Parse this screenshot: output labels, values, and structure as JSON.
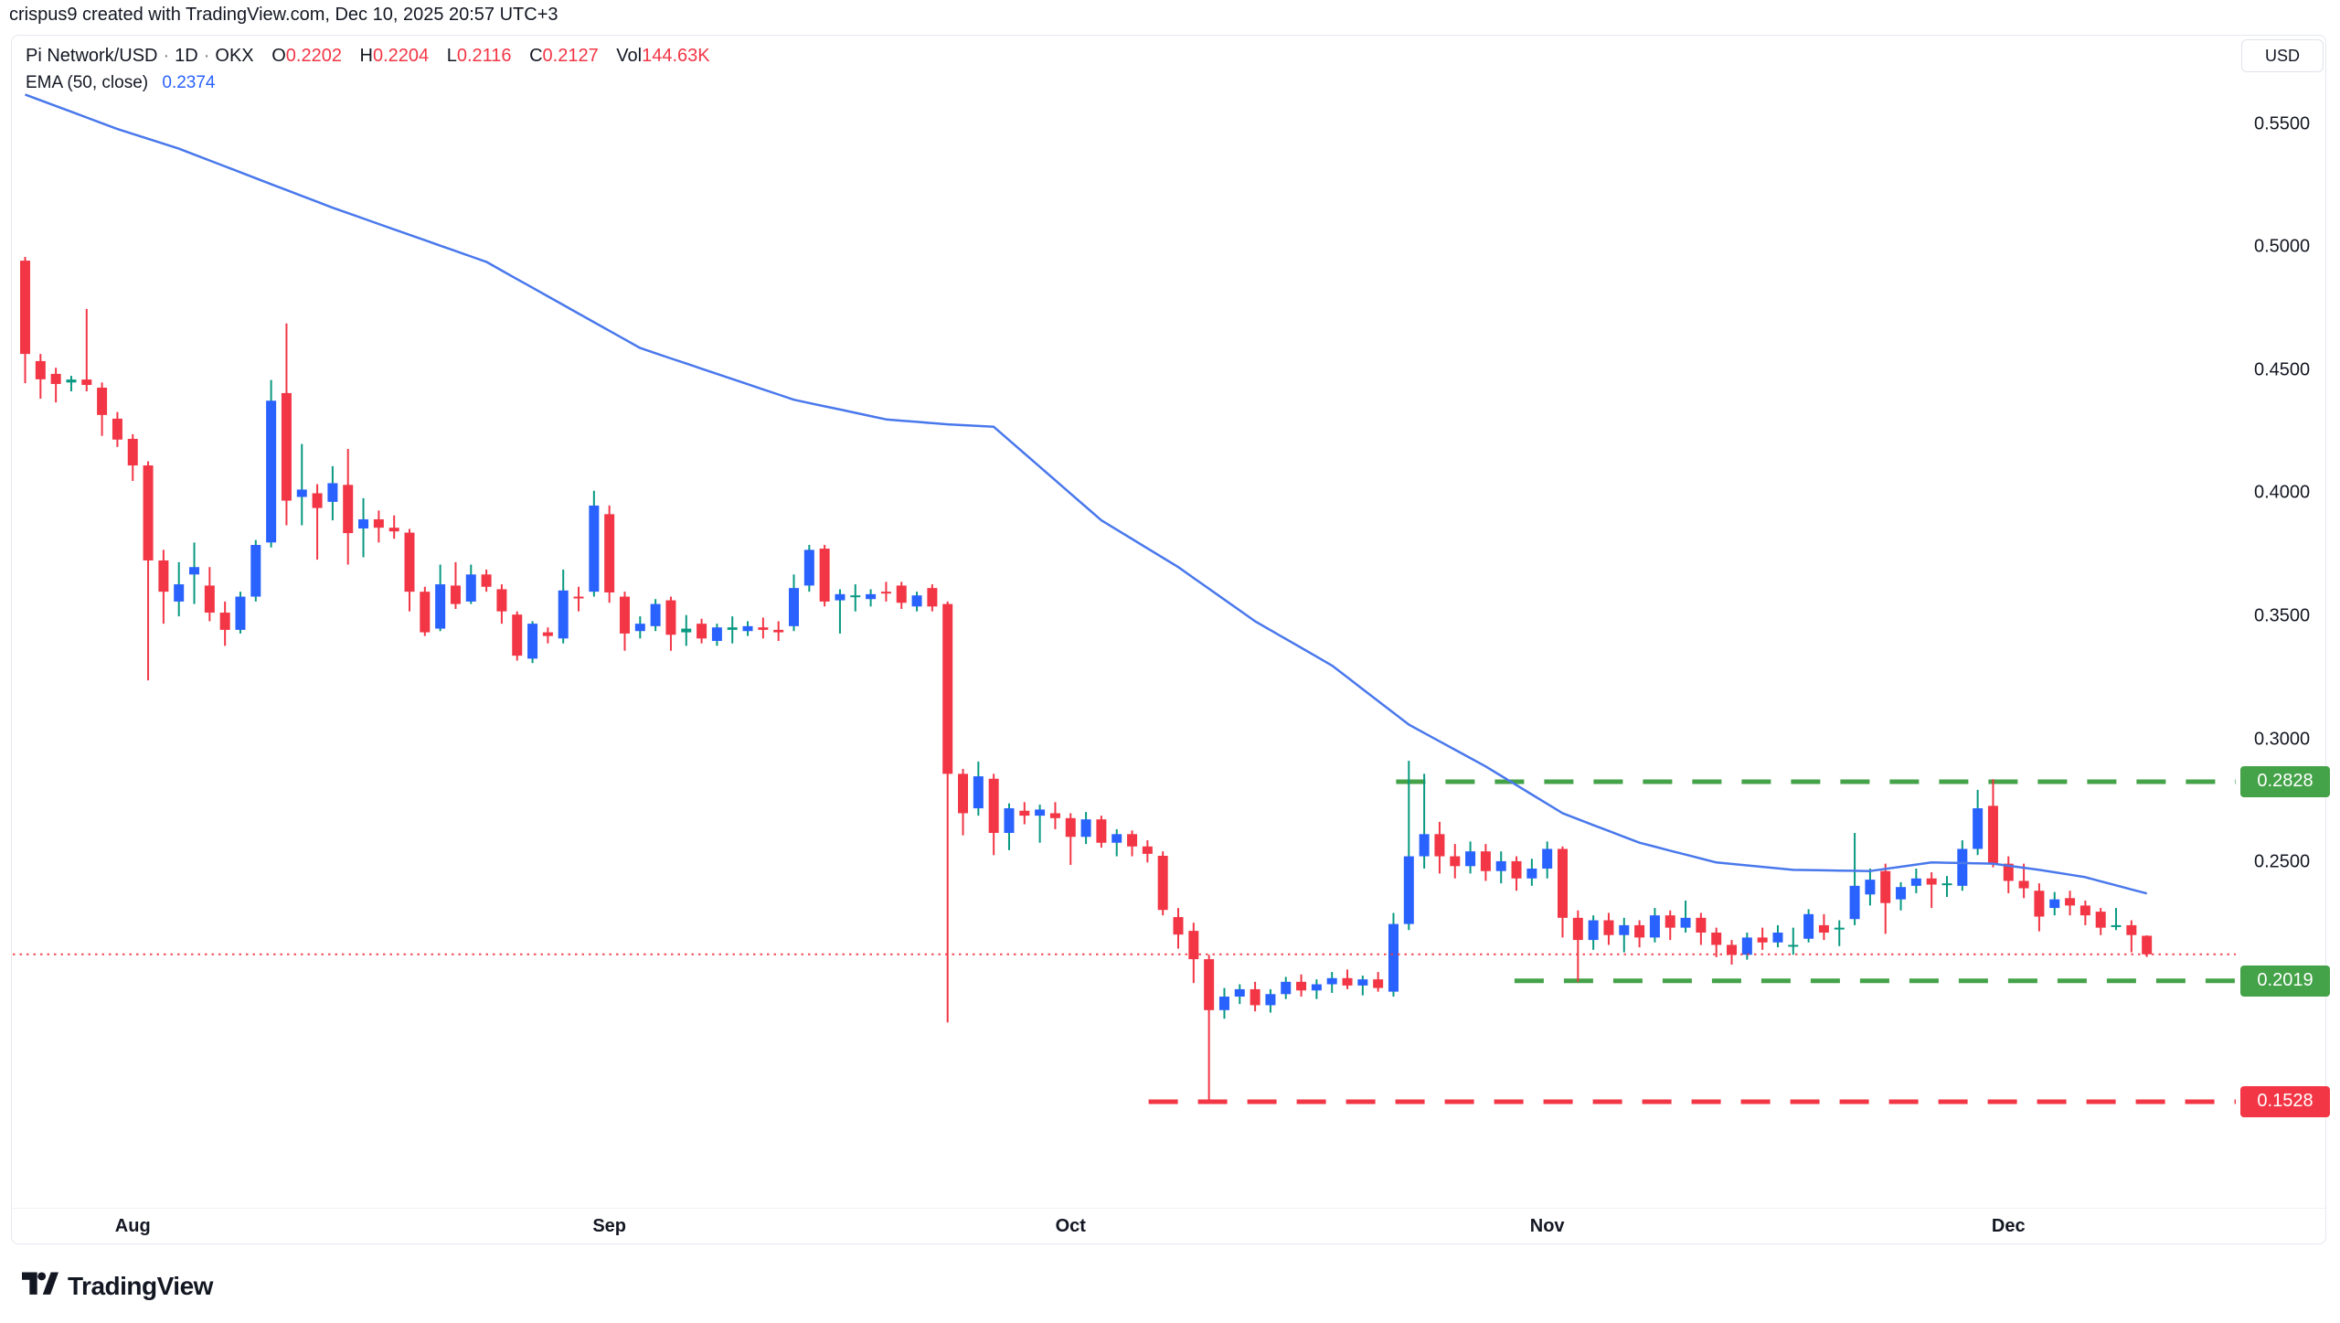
{
  "watermark": "crispus9 created with TradingView.com, Dec 10, 2025 20:57 UTC+3",
  "legend": {
    "title": "Pi Network/USD",
    "separator": "·",
    "interval": "1D",
    "exchange": "OKX",
    "ohlcv": [
      {
        "label": "O",
        "value": "0.2202"
      },
      {
        "label": "H",
        "value": "0.2204"
      },
      {
        "label": "L",
        "value": "0.2116"
      },
      {
        "label": "C",
        "value": "0.2127"
      },
      {
        "label": "Vol",
        "value": "144.63K"
      }
    ],
    "indicator": {
      "label": "EMA (50, close)",
      "value": "0.2374"
    }
  },
  "y_axis": {
    "currency": "USD",
    "tick_labels": [
      "0.5500",
      "0.5000",
      "0.4500",
      "0.4000",
      "0.3500",
      "0.3000",
      "0.2500"
    ],
    "tick_values": [
      0.55,
      0.5,
      0.45,
      0.4,
      0.35,
      0.3,
      0.25
    ]
  },
  "x_axis": {
    "month_labels": [
      {
        "label": "Aug",
        "candle_index": 7
      },
      {
        "label": "Sep",
        "candle_index": 38
      },
      {
        "label": "Oct",
        "candle_index": 68
      },
      {
        "label": "Nov",
        "candle_index": 99
      },
      {
        "label": "Dec",
        "candle_index": 129
      }
    ]
  },
  "badges": [
    {
      "label": "0.2828",
      "value": 0.2828,
      "color": "#44A248"
    },
    {
      "label": "0.2019",
      "value": 0.2019,
      "color": "#44A248"
    },
    {
      "label": "0.1528",
      "value": 0.1528,
      "color": "#F23645"
    }
  ],
  "logo_text": "TradingView",
  "colors": {
    "up_body": "#2962FF",
    "up_wick": "#089981",
    "up_small_body": "#089981",
    "down": "#F23645",
    "ema": "#4978EC",
    "support_resistance": "#44A248",
    "crash_level": "#F23645",
    "last_price": "#F23645",
    "text": "#131722",
    "frame": "#E6E8F0"
  },
  "chart_data": {
    "type": "candlestick",
    "title": "Pi Network/USD · 1D · OKX",
    "interval": "1D",
    "legend_last_bar": {
      "open": 0.2202,
      "high": 0.2204,
      "low": 0.2116,
      "close": 0.2127,
      "volume": "144.63K"
    },
    "ylim": [
      0.13,
      0.585
    ],
    "grid": false,
    "ohlc_format": [
      "date",
      "open",
      "high",
      "low",
      "close"
    ],
    "candles": [
      [
        "2025-07-25",
        0.4945,
        0.496,
        0.4447,
        0.4566
      ],
      [
        "2025-07-26",
        0.4537,
        0.4566,
        0.4384,
        0.4463
      ],
      [
        "2025-07-27",
        0.4485,
        0.451,
        0.4369,
        0.4444
      ],
      [
        "2025-07-28",
        0.445,
        0.4477,
        0.4414,
        0.4462
      ],
      [
        "2025-07-29",
        0.4462,
        0.4749,
        0.4414,
        0.444
      ],
      [
        "2025-07-30",
        0.4429,
        0.445,
        0.4233,
        0.4318
      ],
      [
        "2025-07-31",
        0.4303,
        0.433,
        0.4188,
        0.4218
      ],
      [
        "2025-08-01",
        0.4221,
        0.424,
        0.405,
        0.4113
      ],
      [
        "2025-08-02",
        0.4113,
        0.413,
        0.324,
        0.3727
      ],
      [
        "2025-08-03",
        0.3727,
        0.377,
        0.347,
        0.36
      ],
      [
        "2025-08-04",
        0.356,
        0.372,
        0.35,
        0.363
      ],
      [
        "2025-08-05",
        0.367,
        0.38,
        0.355,
        0.37
      ],
      [
        "2025-08-06",
        0.3625,
        0.37,
        0.348,
        0.3515
      ],
      [
        "2025-08-07",
        0.3515,
        0.356,
        0.338,
        0.3445
      ],
      [
        "2025-08-08",
        0.3445,
        0.36,
        0.343,
        0.358
      ],
      [
        "2025-08-09",
        0.358,
        0.381,
        0.356,
        0.379
      ],
      [
        "2025-08-10",
        0.38,
        0.446,
        0.378,
        0.4376
      ],
      [
        "2025-08-11",
        0.4407,
        0.469,
        0.387,
        0.397
      ],
      [
        "2025-08-12",
        0.3985,
        0.42,
        0.387,
        0.4015
      ],
      [
        "2025-08-13",
        0.4,
        0.4037,
        0.373,
        0.394
      ],
      [
        "2025-08-14",
        0.3965,
        0.411,
        0.389,
        0.4041
      ],
      [
        "2025-08-15",
        0.4034,
        0.418,
        0.371,
        0.3838
      ],
      [
        "2025-08-16",
        0.3857,
        0.398,
        0.374,
        0.3894
      ],
      [
        "2025-08-17",
        0.3894,
        0.393,
        0.38,
        0.386
      ],
      [
        "2025-08-18",
        0.386,
        0.391,
        0.3815,
        0.3845
      ],
      [
        "2025-08-19",
        0.384,
        0.3855,
        0.352,
        0.36
      ],
      [
        "2025-08-20",
        0.36,
        0.362,
        0.342,
        0.3435
      ],
      [
        "2025-08-21",
        0.345,
        0.371,
        0.344,
        0.363
      ],
      [
        "2025-08-22",
        0.3625,
        0.372,
        0.353,
        0.355
      ],
      [
        "2025-08-23",
        0.356,
        0.371,
        0.355,
        0.367
      ],
      [
        "2025-08-24",
        0.367,
        0.369,
        0.36,
        0.362
      ],
      [
        "2025-08-25",
        0.361,
        0.363,
        0.347,
        0.352
      ],
      [
        "2025-08-26",
        0.3507,
        0.352,
        0.332,
        0.334
      ],
      [
        "2025-08-27",
        0.3328,
        0.348,
        0.331,
        0.347
      ],
      [
        "2025-08-28",
        0.3435,
        0.3455,
        0.339,
        0.342
      ],
      [
        "2025-08-29",
        0.341,
        0.369,
        0.339,
        0.3605
      ],
      [
        "2025-08-30",
        0.358,
        0.362,
        0.352,
        0.3575
      ],
      [
        "2025-08-31",
        0.36,
        0.401,
        0.358,
        0.395
      ],
      [
        "2025-09-01",
        0.3915,
        0.395,
        0.3555,
        0.3597
      ],
      [
        "2025-09-02",
        0.358,
        0.36,
        0.336,
        0.343
      ],
      [
        "2025-09-03",
        0.344,
        0.35,
        0.341,
        0.347
      ],
      [
        "2025-09-04",
        0.346,
        0.357,
        0.344,
        0.355
      ],
      [
        "2025-09-05",
        0.3565,
        0.358,
        0.336,
        0.3425
      ],
      [
        "2025-09-06",
        0.3435,
        0.3505,
        0.338,
        0.345
      ],
      [
        "2025-09-07",
        0.347,
        0.349,
        0.339,
        0.341
      ],
      [
        "2025-09-08",
        0.34,
        0.347,
        0.338,
        0.3455
      ],
      [
        "2025-09-09",
        0.3445,
        0.35,
        0.339,
        0.3455
      ],
      [
        "2025-09-10",
        0.344,
        0.348,
        0.342,
        0.346
      ],
      [
        "2025-09-11",
        0.3455,
        0.3495,
        0.341,
        0.3445
      ],
      [
        "2025-09-12",
        0.3445,
        0.348,
        0.34,
        0.3435
      ],
      [
        "2025-09-13",
        0.346,
        0.367,
        0.344,
        0.3615
      ],
      [
        "2025-09-14",
        0.3625,
        0.379,
        0.36,
        0.377
      ],
      [
        "2025-09-15",
        0.3775,
        0.379,
        0.354,
        0.356
      ],
      [
        "2025-09-16",
        0.3565,
        0.361,
        0.343,
        0.359
      ],
      [
        "2025-09-17",
        0.358,
        0.363,
        0.352,
        0.3585
      ],
      [
        "2025-09-18",
        0.357,
        0.361,
        0.354,
        0.359
      ],
      [
        "2025-09-19",
        0.36,
        0.364,
        0.356,
        0.3595
      ],
      [
        "2025-09-20",
        0.3625,
        0.364,
        0.353,
        0.3555
      ],
      [
        "2025-09-21",
        0.354,
        0.36,
        0.352,
        0.3585
      ],
      [
        "2025-09-22",
        0.3615,
        0.363,
        0.352,
        0.354
      ],
      [
        "2025-09-23",
        0.355,
        0.356,
        0.185,
        0.286
      ],
      [
        "2025-09-24",
        0.286,
        0.288,
        0.261,
        0.27
      ],
      [
        "2025-09-25",
        0.272,
        0.291,
        0.269,
        0.285
      ],
      [
        "2025-09-26",
        0.284,
        0.286,
        0.253,
        0.262
      ],
      [
        "2025-09-27",
        0.262,
        0.274,
        0.255,
        0.272
      ],
      [
        "2025-09-28",
        0.271,
        0.2745,
        0.2655,
        0.269
      ],
      [
        "2025-09-29",
        0.269,
        0.2735,
        0.258,
        0.2715
      ],
      [
        "2025-09-30",
        0.27,
        0.2745,
        0.2635,
        0.268
      ],
      [
        "2025-10-01",
        0.268,
        0.27,
        0.249,
        0.2604
      ],
      [
        "2025-10-02",
        0.2604,
        0.2705,
        0.2575,
        0.2675
      ],
      [
        "2025-10-03",
        0.2675,
        0.269,
        0.256,
        0.258
      ],
      [
        "2025-10-04",
        0.258,
        0.2635,
        0.2525,
        0.2615
      ],
      [
        "2025-10-05",
        0.2615,
        0.263,
        0.2525,
        0.2565
      ],
      [
        "2025-10-06",
        0.2565,
        0.259,
        0.25,
        0.2535
      ],
      [
        "2025-10-07",
        0.2527,
        0.2545,
        0.2285,
        0.2307
      ],
      [
        "2025-10-08",
        0.2278,
        0.2315,
        0.215,
        0.2207
      ],
      [
        "2025-10-09",
        0.2222,
        0.2255,
        0.201,
        0.2107
      ],
      [
        "2025-10-10",
        0.2107,
        0.2125,
        0.1528,
        0.19
      ],
      [
        "2025-10-11",
        0.19,
        0.199,
        0.1865,
        0.1955
      ],
      [
        "2025-10-12",
        0.1955,
        0.2005,
        0.1925,
        0.1985
      ],
      [
        "2025-10-13",
        0.1985,
        0.2015,
        0.1895,
        0.192
      ],
      [
        "2025-10-14",
        0.192,
        0.1985,
        0.189,
        0.1965
      ],
      [
        "2025-10-15",
        0.1965,
        0.2035,
        0.1945,
        0.2015
      ],
      [
        "2025-10-16",
        0.2015,
        0.2045,
        0.1955,
        0.198
      ],
      [
        "2025-10-17",
        0.198,
        0.2025,
        0.1945,
        0.2005
      ],
      [
        "2025-10-18",
        0.2005,
        0.2055,
        0.197,
        0.203
      ],
      [
        "2025-10-19",
        0.203,
        0.2065,
        0.1985,
        0.2
      ],
      [
        "2025-10-20",
        0.2,
        0.204,
        0.196,
        0.2025
      ],
      [
        "2025-10-21",
        0.2025,
        0.2055,
        0.1975,
        0.199
      ],
      [
        "2025-10-22",
        0.1975,
        0.2295,
        0.1955,
        0.225
      ],
      [
        "2025-10-23",
        0.225,
        0.2913,
        0.2225,
        0.2525
      ],
      [
        "2025-10-24",
        0.2525,
        0.286,
        0.2475,
        0.2615
      ],
      [
        "2025-10-25",
        0.2615,
        0.2665,
        0.2455,
        0.2525
      ],
      [
        "2025-10-26",
        0.2525,
        0.2575,
        0.2435,
        0.2485
      ],
      [
        "2025-10-27",
        0.2485,
        0.2585,
        0.2455,
        0.2545
      ],
      [
        "2025-10-28",
        0.2545,
        0.2575,
        0.2425,
        0.2465
      ],
      [
        "2025-10-29",
        0.2465,
        0.2545,
        0.2415,
        0.2505
      ],
      [
        "2025-10-30",
        0.2505,
        0.2525,
        0.2385,
        0.2435
      ],
      [
        "2025-10-31",
        0.2435,
        0.2515,
        0.2405,
        0.2475
      ],
      [
        "2025-11-01",
        0.2475,
        0.2585,
        0.2435,
        0.2555
      ],
      [
        "2025-11-02",
        0.2555,
        0.2565,
        0.2195,
        0.2275
      ],
      [
        "2025-11-03",
        0.2275,
        0.2305,
        0.2015,
        0.2185
      ],
      [
        "2025-11-04",
        0.2185,
        0.2285,
        0.2145,
        0.2265
      ],
      [
        "2025-11-05",
        0.2265,
        0.2295,
        0.2165,
        0.2205
      ],
      [
        "2025-11-06",
        0.2205,
        0.2275,
        0.2135,
        0.2245
      ],
      [
        "2025-11-07",
        0.2245,
        0.2265,
        0.2155,
        0.2195
      ],
      [
        "2025-11-08",
        0.2195,
        0.2315,
        0.2175,
        0.2285
      ],
      [
        "2025-11-09",
        0.2285,
        0.2305,
        0.2185,
        0.2235
      ],
      [
        "2025-11-10",
        0.2235,
        0.2345,
        0.2215,
        0.2275
      ],
      [
        "2025-11-11",
        0.2275,
        0.2295,
        0.2165,
        0.2215
      ],
      [
        "2025-11-12",
        0.2215,
        0.2235,
        0.2115,
        0.2165
      ],
      [
        "2025-11-13",
        0.2165,
        0.2185,
        0.2085,
        0.2125
      ],
      [
        "2025-11-14",
        0.2125,
        0.2215,
        0.2105,
        0.2195
      ],
      [
        "2025-11-15",
        0.2195,
        0.2235,
        0.2145,
        0.2175
      ],
      [
        "2025-11-16",
        0.2175,
        0.2245,
        0.2155,
        0.2215
      ],
      [
        "2025-11-17",
        0.2165,
        0.2235,
        0.2125,
        0.2165
      ],
      [
        "2025-11-18",
        0.219,
        0.231,
        0.2175,
        0.229
      ],
      [
        "2025-11-19",
        0.2245,
        0.229,
        0.2185,
        0.2215
      ],
      [
        "2025-11-20",
        0.2235,
        0.2265,
        0.216,
        0.2235
      ],
      [
        "2025-11-21",
        0.227,
        0.262,
        0.2245,
        0.2405
      ],
      [
        "2025-11-22",
        0.237,
        0.2475,
        0.2325,
        0.243
      ],
      [
        "2025-11-23",
        0.2465,
        0.2495,
        0.221,
        0.2335
      ],
      [
        "2025-11-24",
        0.235,
        0.242,
        0.2305,
        0.24
      ],
      [
        "2025-11-25",
        0.2405,
        0.2475,
        0.2375,
        0.2435
      ],
      [
        "2025-11-26",
        0.2435,
        0.246,
        0.2315,
        0.241
      ],
      [
        "2025-11-27",
        0.2415,
        0.2445,
        0.236,
        0.2415
      ],
      [
        "2025-11-28",
        0.2405,
        0.259,
        0.2385,
        0.2555
      ],
      [
        "2025-11-29",
        0.2555,
        0.2795,
        0.253,
        0.272
      ],
      [
        "2025-11-30",
        0.273,
        0.2838,
        0.248,
        0.2495
      ],
      [
        "2025-12-01",
        0.2495,
        0.2525,
        0.2375,
        0.2425
      ],
      [
        "2025-12-02",
        0.2425,
        0.2495,
        0.2355,
        0.2395
      ],
      [
        "2025-12-03",
        0.2385,
        0.2415,
        0.222,
        0.228
      ],
      [
        "2025-12-04",
        0.2315,
        0.238,
        0.2285,
        0.235
      ],
      [
        "2025-12-05",
        0.2355,
        0.2385,
        0.2285,
        0.2325
      ],
      [
        "2025-12-06",
        0.2325,
        0.2345,
        0.2245,
        0.2285
      ],
      [
        "2025-12-07",
        0.23,
        0.2315,
        0.2205,
        0.2235
      ],
      [
        "2025-12-08",
        0.2245,
        0.2315,
        0.2225,
        0.2245
      ],
      [
        "2025-12-09",
        0.2245,
        0.2265,
        0.2135,
        0.2205
      ],
      [
        "2025-12-10",
        0.2202,
        0.2204,
        0.2116,
        0.2127
      ]
    ],
    "ema": {
      "label": "EMA (50, close)",
      "period": 50,
      "source": "close",
      "last_value": 0.2374,
      "anchors": [
        [
          0,
          0.562
        ],
        [
          6,
          0.548
        ],
        [
          10,
          0.54
        ],
        [
          20,
          0.516
        ],
        [
          30,
          0.494
        ],
        [
          40,
          0.459
        ],
        [
          50,
          0.438
        ],
        [
          56,
          0.43
        ],
        [
          60,
          0.428
        ],
        [
          63,
          0.427
        ],
        [
          70,
          0.389
        ],
        [
          75,
          0.37
        ],
        [
          80,
          0.348
        ],
        [
          85,
          0.33
        ],
        [
          90,
          0.306
        ],
        [
          95,
          0.289
        ],
        [
          100,
          0.27
        ],
        [
          105,
          0.258
        ],
        [
          110,
          0.25
        ],
        [
          115,
          0.247
        ],
        [
          120,
          0.2465
        ],
        [
          124,
          0.25
        ],
        [
          128,
          0.2495
        ],
        [
          131,
          0.247
        ],
        [
          134,
          0.244
        ],
        [
          138,
          0.2374
        ]
      ]
    },
    "levels": [
      {
        "name": "resistance",
        "value": 0.2828,
        "label": "0.2828",
        "style": "dashed",
        "color": "#44A248",
        "start_index": 89.5
      },
      {
        "name": "support",
        "value": 0.2019,
        "label": "0.2019",
        "style": "dashed",
        "color": "#44A248",
        "start_index": 97.2
      },
      {
        "name": "crash-low",
        "value": 0.1528,
        "label": "0.1528",
        "style": "dashed",
        "color": "#F23645",
        "start_index": 73.4
      },
      {
        "name": "last-price",
        "value": 0.2127,
        "label": null,
        "style": "dotted",
        "color": "#F23645",
        "start_index": -0.6
      }
    ],
    "legend_position": "top-left",
    "y_axis_side": "right"
  }
}
